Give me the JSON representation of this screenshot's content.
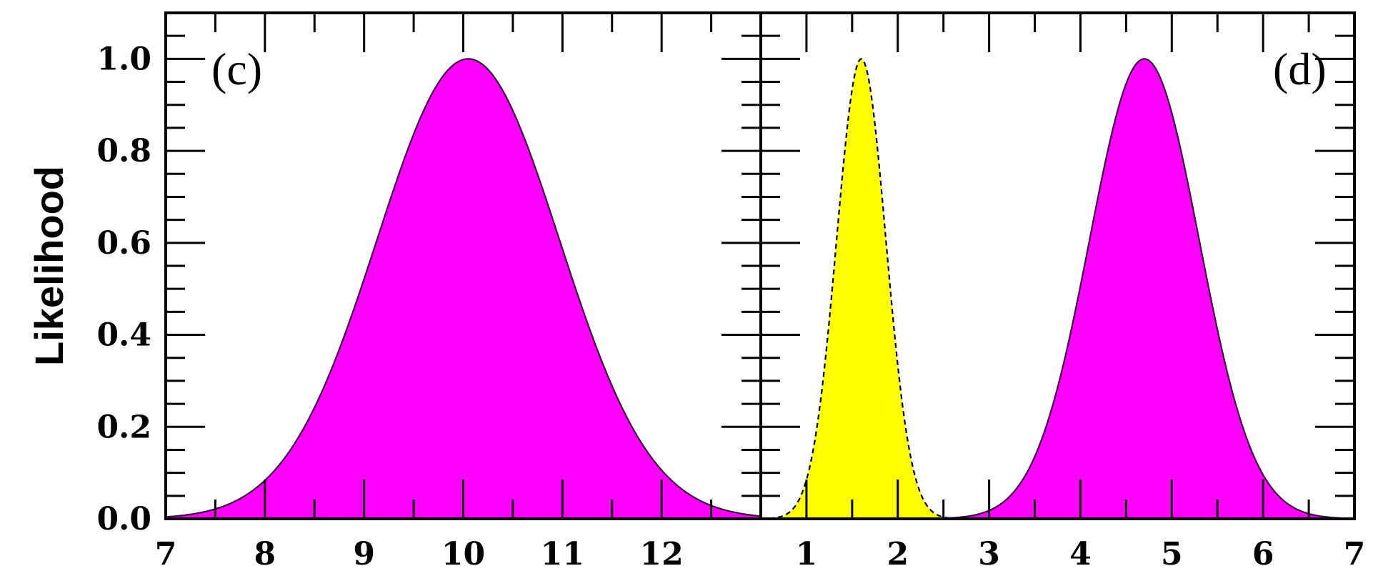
{
  "chart_data": [
    {
      "type": "area",
      "panel_label": "(c)",
      "ylabel": "Likelihood",
      "xlim": [
        7,
        13
      ],
      "ylim": [
        0,
        1.1
      ],
      "x_ticks": [
        7,
        8,
        9,
        10,
        11,
        12
      ],
      "x_tick_labels": [
        "7",
        "8",
        "9",
        "10",
        "11",
        "12"
      ],
      "y_ticks": [
        0.0,
        0.2,
        0.4,
        0.6,
        0.8,
        1.0
      ],
      "y_tick_labels": [
        "0.0",
        "0.2",
        "0.4",
        "0.6",
        "0.8",
        "1.0"
      ],
      "series": [
        {
          "shape": "gaussian",
          "peak_x": 10.05,
          "sigma": 0.92,
          "amplitude": 1.0,
          "fill": "#ff00ff",
          "stroke": "#3a0040",
          "dashed": false
        }
      ]
    },
    {
      "type": "area",
      "panel_label": "(d)",
      "xlim": [
        0.5,
        7
      ],
      "ylim": [
        0,
        1.1
      ],
      "x_ticks": [
        1,
        2,
        3,
        4,
        5,
        6,
        7
      ],
      "x_tick_labels": [
        "1",
        "2",
        "3",
        "4",
        "5",
        "6",
        "7"
      ],
      "y_ticks": [
        0.0,
        0.2,
        0.4,
        0.6,
        0.8,
        1.0
      ],
      "series": [
        {
          "shape": "gaussian",
          "peak_x": 1.6,
          "sigma": 0.27,
          "amplitude": 1.0,
          "fill": "#ffff00",
          "stroke": "#000000",
          "dashed": true
        },
        {
          "shape": "gaussian",
          "peak_x": 4.7,
          "sigma": 0.6,
          "amplitude": 1.0,
          "fill": "#ff00ff",
          "stroke": "#3a0040",
          "dashed": false
        }
      ]
    }
  ]
}
